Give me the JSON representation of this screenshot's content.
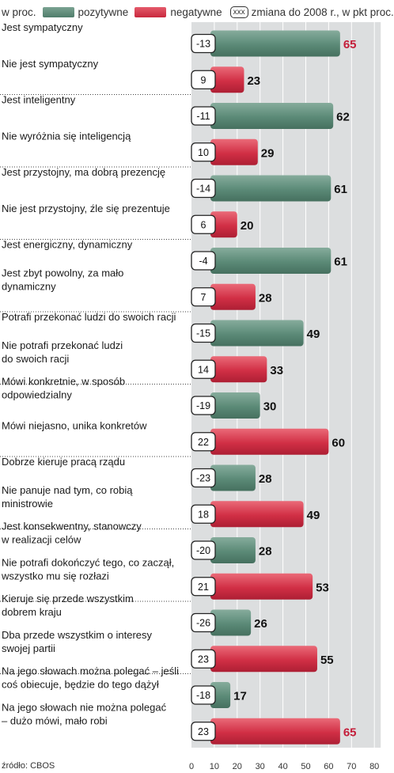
{
  "legend": {
    "unit": "w proc.",
    "positive": "pozytywne",
    "negative": "negatywne",
    "change_symbol": "xxx",
    "change": "zmiana do 2008 r., w pkt proc."
  },
  "source": "źródło: CBOS",
  "colors": {
    "positive": "#5b8a77",
    "negative": "#d12f45",
    "axis_bg": "#dcdedf",
    "highlight_value": "#c41e3a"
  },
  "chart_data": {
    "type": "bar",
    "orientation": "horizontal",
    "xlim": [
      0,
      80
    ],
    "x_ticks": [
      0,
      10,
      20,
      30,
      40,
      50,
      60,
      70,
      80
    ],
    "grid": true,
    "items": [
      {
        "label": [
          "Jest sympatyczny"
        ],
        "type": "positive",
        "value": 65,
        "change": "-13",
        "highlight": true
      },
      {
        "label": [
          "Nie jest sympatyczny"
        ],
        "type": "negative",
        "value": 23,
        "change": "9"
      },
      {
        "label": [
          "Jest inteligentny"
        ],
        "type": "positive",
        "value": 62,
        "change": "-11"
      },
      {
        "label": [
          "Nie wyróżnia się inteligencją"
        ],
        "type": "negative",
        "value": 29,
        "change": "10"
      },
      {
        "label": [
          "Jest przystojny, ma dobrą prezencję"
        ],
        "type": "positive",
        "value": 61,
        "change": "-14"
      },
      {
        "label": [
          "Nie jest przystojny, źle się prezentuje"
        ],
        "type": "negative",
        "value": 20,
        "change": "6"
      },
      {
        "label": [
          "Jest energiczny, dynamiczny"
        ],
        "type": "positive",
        "value": 61,
        "change": "-4"
      },
      {
        "label": [
          "Jest zbyt powolny, za mało",
          "dynamiczny"
        ],
        "type": "negative",
        "value": 28,
        "change": "7"
      },
      {
        "label": [
          "Potrafi przekonać ludzi do swoich racji"
        ],
        "type": "positive",
        "value": 49,
        "change": "-15"
      },
      {
        "label": [
          "Nie potrafi przekonać ludzi",
          "do swoich racji"
        ],
        "type": "negative",
        "value": 33,
        "change": "14"
      },
      {
        "label": [
          "Mówi konkretnie, w sposób",
          "odpowiedzialny"
        ],
        "type": "positive",
        "value": 30,
        "change": "-19"
      },
      {
        "label": [
          "Mówi niejasno, unika konkretów"
        ],
        "type": "negative",
        "value": 60,
        "change": "22"
      },
      {
        "label": [
          "Dobrze kieruje pracą rządu"
        ],
        "type": "positive",
        "value": 28,
        "change": "-23"
      },
      {
        "label": [
          "Nie panuje nad tym, co robią",
          "ministrowie"
        ],
        "type": "negative",
        "value": 49,
        "change": "18"
      },
      {
        "label": [
          "Jest konsekwentny, stanowczy",
          "w realizacji celów"
        ],
        "type": "positive",
        "value": 28,
        "change": "-20"
      },
      {
        "label": [
          "Nie potrafi dokończyć tego, co zaczął,",
          "wszystko mu się rozłazi"
        ],
        "type": "negative",
        "value": 53,
        "change": "21"
      },
      {
        "label": [
          "Kieruje się przede wszystkim",
          "dobrem kraju"
        ],
        "type": "positive",
        "value": 26,
        "change": "-26"
      },
      {
        "label": [
          "Dba przede wszystkim o interesy",
          "swojej partii"
        ],
        "type": "negative",
        "value": 55,
        "change": "23"
      },
      {
        "label": [
          "Na jego słowach można polegać – jeśli",
          "coś obiecuje, będzie do tego dążył"
        ],
        "type": "positive",
        "value": 17,
        "change": "-18"
      },
      {
        "label": [
          "Na jego słowach nie można polegać",
          "– dużo mówi, mało robi"
        ],
        "type": "negative",
        "value": 65,
        "change": "23",
        "highlight": true
      }
    ]
  }
}
